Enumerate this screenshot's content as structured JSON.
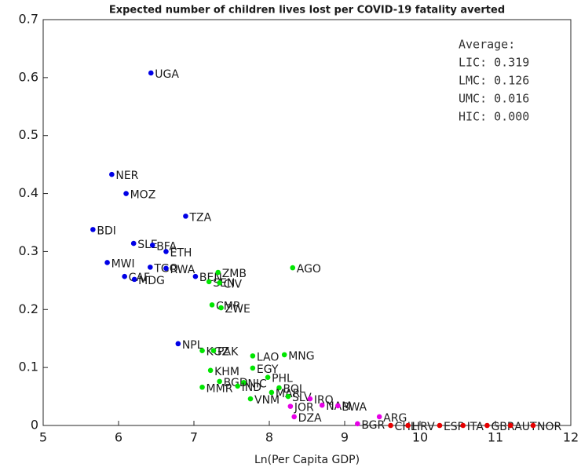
{
  "chart_data": {
    "type": "scatter",
    "title": "Expected number of children lives lost per COVID-19 fatality averted",
    "xlabel": "Ln(Per Capita GDP)",
    "xlim": [
      5,
      12
    ],
    "xticks": [
      5,
      6,
      7,
      8,
      9,
      10,
      11,
      12
    ],
    "ylim": [
      0,
      0.7
    ],
    "yticks": [
      0,
      0.1,
      0.2,
      0.3,
      0.4,
      0.5,
      0.6,
      0.7
    ],
    "annotation": [
      "Average:",
      "LIC: 0.319",
      "LMC: 0.126",
      "UMC: 0.016",
      "HIC: 0.000"
    ],
    "series": [
      {
        "color": "#0000e6",
        "labels": [
          "UGA",
          "NER",
          "MOZ",
          "TZA",
          "BDI",
          "SLE",
          "BFA",
          "ETH",
          "MWI",
          "TGO",
          "RWA",
          "CAF",
          "MDG",
          "BEN",
          "NPL"
        ],
        "x": [
          6.43,
          5.91,
          6.1,
          6.89,
          5.66,
          6.2,
          6.45,
          6.63,
          5.85,
          6.42,
          6.63,
          6.08,
          6.21,
          7.02,
          6.79
        ],
        "values": [
          0.608,
          0.433,
          0.4,
          0.361,
          0.338,
          0.314,
          0.311,
          0.3,
          0.281,
          0.273,
          0.271,
          0.257,
          0.252,
          0.257,
          0.141
        ]
      },
      {
        "color": "#00e600",
        "labels": [
          "ZMB",
          "SEN",
          "CIV",
          "AGO",
          "CMR",
          "ZWE",
          "KGZ",
          "PAK",
          "LAO",
          "MNG",
          "KHM",
          "EGY",
          "PHL",
          "BGD",
          "NIC",
          "MMR",
          "IND",
          "BOL",
          "MAR",
          "VNM",
          "SLV"
        ],
        "x": [
          7.32,
          7.2,
          7.34,
          8.31,
          7.24,
          7.36,
          7.11,
          7.26,
          7.78,
          8.2,
          7.22,
          7.78,
          7.98,
          7.34,
          7.66,
          7.11,
          7.58,
          8.13,
          8.03,
          7.75,
          8.25
        ],
        "values": [
          0.264,
          0.248,
          0.246,
          0.272,
          0.208,
          0.203,
          0.129,
          0.129,
          0.12,
          0.122,
          0.095,
          0.099,
          0.083,
          0.076,
          0.074,
          0.066,
          0.068,
          0.065,
          0.057,
          0.046,
          0.05
        ]
      },
      {
        "color": "#e600e6",
        "labels": [
          "IRQ",
          "NAM",
          "BWA",
          "JOR",
          "DZA",
          "ARG",
          "BGR"
        ],
        "x": [
          8.54,
          8.7,
          8.91,
          8.28,
          8.33,
          9.46,
          9.17
        ],
        "values": [
          0.046,
          0.035,
          0.034,
          0.033,
          0.015,
          0.015,
          0.003
        ]
      },
      {
        "color": "#e60000",
        "labels": [
          "CHL",
          "HRV",
          "ESP",
          "ITA",
          "GBR",
          "AUT",
          "NOR"
        ],
        "x": [
          9.61,
          9.84,
          10.26,
          10.57,
          10.89,
          11.2,
          11.5
        ],
        "values": [
          0,
          0,
          0,
          0,
          0,
          0,
          0
        ]
      }
    ]
  }
}
